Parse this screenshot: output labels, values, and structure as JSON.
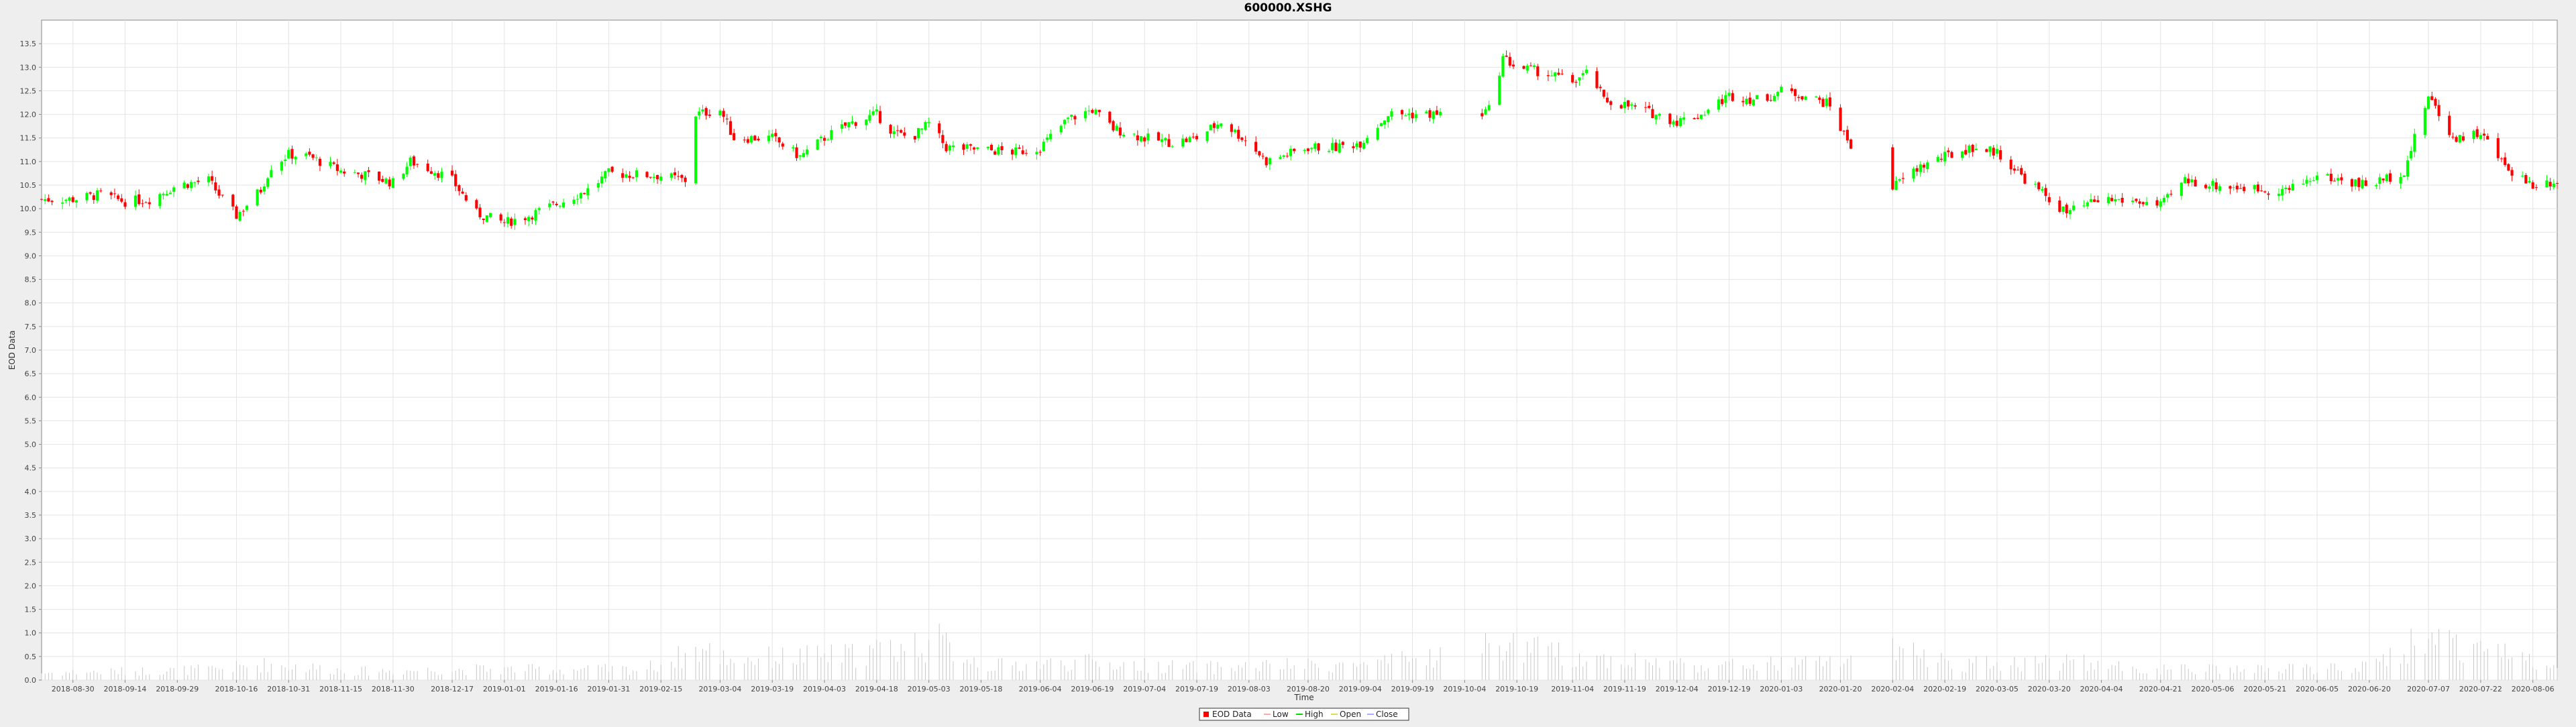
{
  "chart_data": {
    "type": "candlestick",
    "title": "600000.XSHG",
    "xlabel": "Time",
    "ylabel": "EOD Data",
    "ylim": [
      0,
      14
    ],
    "yticks": [
      0.0,
      0.5,
      1.0,
      1.5,
      2.0,
      2.5,
      3.0,
      3.5,
      4.0,
      4.5,
      5.0,
      5.5,
      6.0,
      6.5,
      7.0,
      7.5,
      8.0,
      8.5,
      9.0,
      9.5,
      10.0,
      10.5,
      11.0,
      11.5,
      12.0,
      12.5,
      13.0,
      13.5
    ],
    "x_ticks": [
      "2018-08-30",
      "2018-09-14",
      "2018-09-29",
      "2018-10-16",
      "2018-10-31",
      "2018-11-15",
      "2018-11-30",
      "2018-12-17",
      "2019-01-01",
      "2019-01-16",
      "2019-01-31",
      "2019-02-15",
      "2019-03-04",
      "2019-03-19",
      "2019-04-03",
      "2019-04-18",
      "2019-05-03",
      "2019-05-18",
      "2019-06-04",
      "2019-06-19",
      "2019-07-04",
      "2019-07-19",
      "2019-08-03",
      "2019-08-20",
      "2019-09-04",
      "2019-09-19",
      "2019-10-04",
      "2019-10-19",
      "2019-11-04",
      "2019-11-19",
      "2019-12-04",
      "2019-12-19",
      "2020-01-03",
      "2020-01-20",
      "2020-02-04",
      "2020-02-19",
      "2020-03-05",
      "2020-03-20",
      "2020-04-04",
      "2020-04-21",
      "2020-05-06",
      "2020-05-21",
      "2020-06-05",
      "2020-06-20",
      "2020-07-07",
      "2020-07-22",
      "2020-08-06"
    ],
    "x_range": [
      "2018-08-21",
      "2020-08-13"
    ],
    "grid": true,
    "legend_position": "bottom-center",
    "legend": [
      {
        "label": "EOD Data",
        "color": "#ff0000"
      },
      {
        "label": "Low",
        "color": "#ffaaaa"
      },
      {
        "label": "High",
        "color": "#00dd00"
      },
      {
        "label": "Open",
        "color": "#dddd55"
      },
      {
        "label": "Close",
        "color": "#aaaaff"
      }
    ],
    "up_color": "#00ff00",
    "down_color": "#ff0000",
    "volume_color": "#c8c8c8",
    "close_path": [
      [
        "2018-08-21",
        10.2
      ],
      [
        "2018-08-30",
        10.2
      ],
      [
        "2018-09-07",
        10.3
      ],
      [
        "2018-09-14",
        10.15
      ],
      [
        "2018-09-21",
        10.2
      ],
      [
        "2018-09-29",
        10.5
      ],
      [
        "2018-10-08",
        10.6
      ],
      [
        "2018-10-12",
        10.2
      ],
      [
        "2018-10-16",
        9.85
      ],
      [
        "2018-10-23",
        10.4
      ],
      [
        "2018-10-26",
        10.9
      ],
      [
        "2018-10-31",
        11.15
      ],
      [
        "2018-11-06",
        11.1
      ],
      [
        "2018-11-15",
        10.8
      ],
      [
        "2018-11-23",
        10.7
      ],
      [
        "2018-11-30",
        10.55
      ],
      [
        "2018-12-05",
        11.0
      ],
      [
        "2018-12-12",
        10.8
      ],
      [
        "2018-12-17",
        10.6
      ],
      [
        "2018-12-24",
        9.9
      ],
      [
        "2019-01-01",
        9.7
      ],
      [
        "2019-01-08",
        9.85
      ],
      [
        "2019-01-16",
        10.1
      ],
      [
        "2019-01-25",
        10.4
      ],
      [
        "2019-01-31",
        10.75
      ],
      [
        "2019-02-15",
        10.7
      ],
      [
        "2019-02-22",
        10.6
      ],
      [
        "2019-02-25",
        12.0
      ],
      [
        "2019-03-04",
        12.1
      ],
      [
        "2019-03-08",
        11.5
      ],
      [
        "2019-03-19",
        11.5
      ],
      [
        "2019-03-27",
        11.1
      ],
      [
        "2019-04-03",
        11.5
      ],
      [
        "2019-04-10",
        11.8
      ],
      [
        "2019-04-18",
        12.0
      ],
      [
        "2019-04-23",
        11.6
      ],
      [
        "2019-04-28",
        11.5
      ],
      [
        "2019-05-03",
        11.8
      ],
      [
        "2019-05-08",
        11.3
      ],
      [
        "2019-05-18",
        11.25
      ],
      [
        "2019-05-28",
        11.2
      ],
      [
        "2019-06-04",
        11.3
      ],
      [
        "2019-06-12",
        11.9
      ],
      [
        "2019-06-19",
        12.1
      ],
      [
        "2019-06-25",
        11.7
      ],
      [
        "2019-07-04",
        11.5
      ],
      [
        "2019-07-12",
        11.4
      ],
      [
        "2019-07-19",
        11.5
      ],
      [
        "2019-07-26",
        11.85
      ],
      [
        "2019-08-03",
        11.4
      ],
      [
        "2019-08-08",
        11.0
      ],
      [
        "2019-08-20",
        11.3
      ],
      [
        "2019-08-28",
        11.3
      ],
      [
        "2019-09-04",
        11.4
      ],
      [
        "2019-09-12",
        12.0
      ],
      [
        "2019-09-19",
        12.0
      ],
      [
        "2019-09-28",
        12.0
      ],
      [
        "2019-10-04",
        11.8
      ],
      [
        "2019-10-11",
        12.1
      ],
      [
        "2019-10-15",
        13.2
      ],
      [
        "2019-10-19",
        13.0
      ],
      [
        "2019-10-26",
        12.9
      ],
      [
        "2019-11-04",
        12.7
      ],
      [
        "2019-11-09",
        12.9
      ],
      [
        "2019-11-13",
        12.3
      ],
      [
        "2019-11-19",
        12.2
      ],
      [
        "2019-11-28",
        12.0
      ],
      [
        "2019-12-04",
        11.85
      ],
      [
        "2019-12-11",
        12.0
      ],
      [
        "2019-12-19",
        12.4
      ],
      [
        "2019-12-28",
        12.3
      ],
      [
        "2020-01-03",
        12.5
      ],
      [
        "2020-01-10",
        12.4
      ],
      [
        "2020-01-17",
        12.2
      ],
      [
        "2020-01-20",
        11.7
      ],
      [
        "2020-01-23",
        11.35
      ],
      [
        "2020-02-03",
        10.4
      ],
      [
        "2020-02-12",
        10.9
      ],
      [
        "2020-02-19",
        11.1
      ],
      [
        "2020-02-27",
        11.3
      ],
      [
        "2020-03-05",
        11.2
      ],
      [
        "2020-03-12",
        10.7
      ],
      [
        "2020-03-20",
        10.2
      ],
      [
        "2020-03-25",
        9.9
      ],
      [
        "2020-04-04",
        10.2
      ],
      [
        "2020-04-15",
        10.15
      ],
      [
        "2020-04-21",
        10.05
      ],
      [
        "2020-04-28",
        10.6
      ],
      [
        "2020-05-06",
        10.5
      ],
      [
        "2020-05-14",
        10.45
      ],
      [
        "2020-05-21",
        10.4
      ],
      [
        "2020-05-28",
        10.4
      ],
      [
        "2020-06-05",
        10.7
      ],
      [
        "2020-06-12",
        10.6
      ],
      [
        "2020-06-20",
        10.5
      ],
      [
        "2020-06-30",
        10.8
      ],
      [
        "2020-07-07",
        12.4
      ],
      [
        "2020-07-14",
        11.5
      ],
      [
        "2020-07-22",
        11.6
      ],
      [
        "2020-07-29",
        10.9
      ],
      [
        "2020-08-06",
        10.5
      ],
      [
        "2020-08-13",
        10.6
      ]
    ],
    "gaps": [
      [
        "2019-09-30",
        "2019-10-08"
      ],
      [
        "2020-01-24",
        "2020-02-03"
      ]
    ],
    "volume_profile": [
      [
        "2018-08-21",
        0.2
      ],
      [
        "2018-10-10",
        0.3
      ],
      [
        "2018-10-25",
        0.45
      ],
      [
        "2018-11-20",
        0.25
      ],
      [
        "2018-12-20",
        0.3
      ],
      [
        "2019-02-10",
        0.3
      ],
      [
        "2019-02-26",
        0.85
      ],
      [
        "2019-03-08",
        0.6
      ],
      [
        "2019-04-10",
        0.7
      ],
      [
        "2019-05-05",
        1.1
      ],
      [
        "2019-05-20",
        0.4
      ],
      [
        "2019-06-15",
        0.5
      ],
      [
        "2019-07-20",
        0.35
      ],
      [
        "2019-08-10",
        0.4
      ],
      [
        "2019-09-10",
        0.45
      ],
      [
        "2019-10-15",
        1.0
      ],
      [
        "2019-11-05",
        0.65
      ],
      [
        "2019-12-15",
        0.4
      ],
      [
        "2020-01-15",
        0.5
      ],
      [
        "2020-02-05",
        0.8
      ],
      [
        "2020-02-25",
        0.45
      ],
      [
        "2020-03-25",
        0.55
      ],
      [
        "2020-04-15",
        0.3
      ],
      [
        "2020-05-20",
        0.3
      ],
      [
        "2020-06-20",
        0.35
      ],
      [
        "2020-07-08",
        1.3
      ],
      [
        "2020-07-25",
        0.8
      ],
      [
        "2020-08-13",
        0.45
      ]
    ]
  }
}
